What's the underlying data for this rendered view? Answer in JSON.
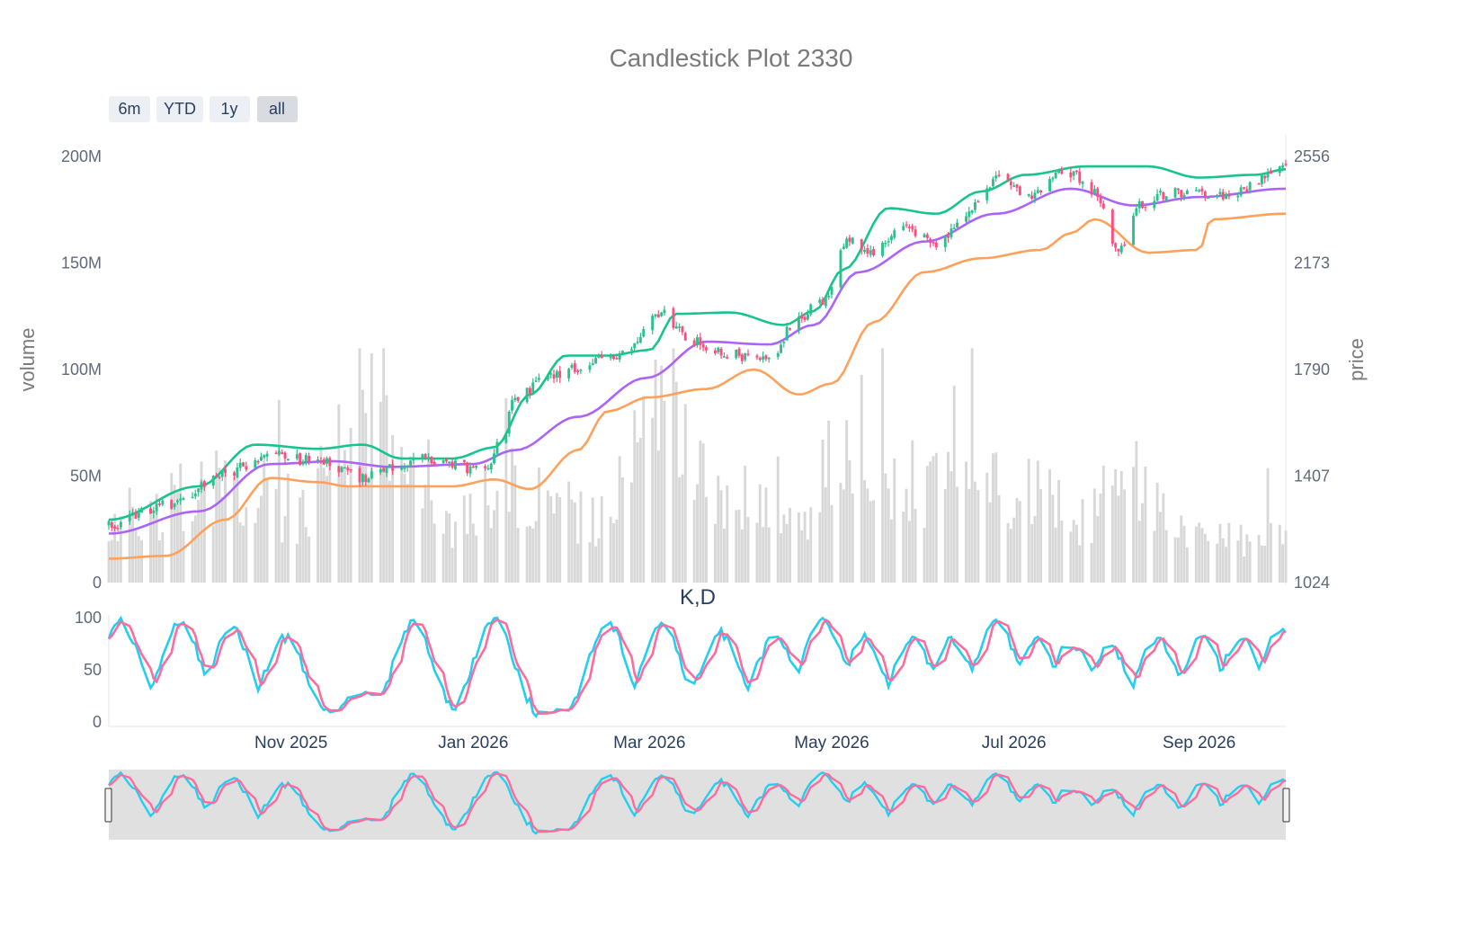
{
  "chart_data": {
    "type": "candlestick",
    "title": "Candlestick Plot 2330",
    "subplot_title": "K,D",
    "range_buttons": [
      "6m",
      "YTD",
      "1y",
      "all"
    ],
    "active_range_button": "all",
    "y_left_label": "volume",
    "y_right_label": "price",
    "volume_ticks": [
      "0",
      "50M",
      "100M",
      "150M",
      "200M"
    ],
    "volume_tick_values": [
      0,
      50000000,
      100000000,
      150000000,
      200000000
    ],
    "price_ticks": [
      "1024",
      "1407",
      "1790",
      "2173",
      "2556"
    ],
    "price_tick_values": [
      1024,
      1407,
      1790,
      2173,
      2556
    ],
    "kd_ticks": [
      "0",
      "50",
      "100"
    ],
    "kd_tick_values": [
      0,
      50,
      100
    ],
    "x_start": "2025-09-01",
    "x_end": "2026-09-30",
    "x_ticks": [
      {
        "label": "Nov 2025",
        "date": "2025-11-01"
      },
      {
        "label": "Jan 2026",
        "date": "2026-01-01"
      },
      {
        "label": "Mar 2026",
        "date": "2026-03-01"
      },
      {
        "label": "May 2026",
        "date": "2026-05-01"
      },
      {
        "label": "Jul 2026",
        "date": "2026-07-01"
      },
      {
        "label": "Sep 2026",
        "date": "2026-09-01"
      }
    ],
    "price_anchors": [
      {
        "date": "2025-09-01",
        "price": 1230
      },
      {
        "date": "2025-09-20",
        "price": 1300
      },
      {
        "date": "2025-10-10",
        "price": 1420
      },
      {
        "date": "2025-10-25",
        "price": 1480
      },
      {
        "date": "2025-11-10",
        "price": 1460
      },
      {
        "date": "2025-11-25",
        "price": 1400
      },
      {
        "date": "2025-12-15",
        "price": 1470
      },
      {
        "date": "2026-01-05",
        "price": 1430
      },
      {
        "date": "2026-01-10",
        "price": 1520
      },
      {
        "date": "2026-01-15",
        "price": 1680
      },
      {
        "date": "2026-01-25",
        "price": 1760
      },
      {
        "date": "2026-02-05",
        "price": 1800
      },
      {
        "date": "2026-02-20",
        "price": 1850
      },
      {
        "date": "2026-03-05",
        "price": 1990
      },
      {
        "date": "2026-03-15",
        "price": 1900
      },
      {
        "date": "2026-03-25",
        "price": 1850
      },
      {
        "date": "2026-04-10",
        "price": 1820
      },
      {
        "date": "2026-04-20",
        "price": 1980
      },
      {
        "date": "2026-04-28",
        "price": 2030
      },
      {
        "date": "2026-05-06",
        "price": 2260
      },
      {
        "date": "2026-05-15",
        "price": 2220
      },
      {
        "date": "2026-05-25",
        "price": 2310
      },
      {
        "date": "2026-06-05",
        "price": 2240
      },
      {
        "date": "2026-06-15",
        "price": 2360
      },
      {
        "date": "2026-06-25",
        "price": 2470
      },
      {
        "date": "2026-07-05",
        "price": 2420
      },
      {
        "date": "2026-07-20",
        "price": 2500
      },
      {
        "date": "2026-07-28",
        "price": 2430
      },
      {
        "date": "2026-08-05",
        "price": 2210
      },
      {
        "date": "2026-08-12",
        "price": 2390
      },
      {
        "date": "2026-08-25",
        "price": 2430
      },
      {
        "date": "2026-09-10",
        "price": 2420
      },
      {
        "date": "2026-09-30",
        "price": 2520
      }
    ],
    "upper_band": [
      {
        "date": "2025-09-01",
        "price": 1250
      },
      {
        "date": "2025-10-01",
        "price": 1370
      },
      {
        "date": "2025-10-20",
        "price": 1520
      },
      {
        "date": "2025-11-10",
        "price": 1505
      },
      {
        "date": "2025-11-25",
        "price": 1520
      },
      {
        "date": "2025-12-08",
        "price": 1470
      },
      {
        "date": "2025-12-25",
        "price": 1470
      },
      {
        "date": "2026-01-08",
        "price": 1510
      },
      {
        "date": "2026-01-20",
        "price": 1700
      },
      {
        "date": "2026-02-01",
        "price": 1840
      },
      {
        "date": "2026-02-15",
        "price": 1840
      },
      {
        "date": "2026-03-01",
        "price": 1860
      },
      {
        "date": "2026-03-10",
        "price": 1990
      },
      {
        "date": "2026-03-28",
        "price": 1995
      },
      {
        "date": "2026-04-15",
        "price": 1950
      },
      {
        "date": "2026-04-25",
        "price": 2000
      },
      {
        "date": "2026-05-05",
        "price": 2150
      },
      {
        "date": "2026-05-20",
        "price": 2370
      },
      {
        "date": "2026-06-05",
        "price": 2350
      },
      {
        "date": "2026-06-20",
        "price": 2430
      },
      {
        "date": "2026-07-05",
        "price": 2490
      },
      {
        "date": "2026-07-25",
        "price": 2520
      },
      {
        "date": "2026-08-15",
        "price": 2520
      },
      {
        "date": "2026-09-01",
        "price": 2480
      },
      {
        "date": "2026-09-20",
        "price": 2490
      },
      {
        "date": "2026-09-30",
        "price": 2510
      }
    ],
    "middle_band": [
      {
        "date": "2025-09-01",
        "price": 1200
      },
      {
        "date": "2025-10-01",
        "price": 1280
      },
      {
        "date": "2025-10-25",
        "price": 1450
      },
      {
        "date": "2025-11-15",
        "price": 1460
      },
      {
        "date": "2025-12-05",
        "price": 1440
      },
      {
        "date": "2026-01-01",
        "price": 1450
      },
      {
        "date": "2026-01-15",
        "price": 1500
      },
      {
        "date": "2026-02-05",
        "price": 1620
      },
      {
        "date": "2026-02-28",
        "price": 1760
      },
      {
        "date": "2026-03-20",
        "price": 1890
      },
      {
        "date": "2026-04-10",
        "price": 1880
      },
      {
        "date": "2026-04-25",
        "price": 1950
      },
      {
        "date": "2026-05-10",
        "price": 2140
      },
      {
        "date": "2026-06-01",
        "price": 2250
      },
      {
        "date": "2026-06-25",
        "price": 2350
      },
      {
        "date": "2026-07-20",
        "price": 2440
      },
      {
        "date": "2026-08-10",
        "price": 2380
      },
      {
        "date": "2026-09-01",
        "price": 2410
      },
      {
        "date": "2026-09-30",
        "price": 2440
      }
    ],
    "lower_band": [
      {
        "date": "2025-09-01",
        "price": 1110
      },
      {
        "date": "2025-09-20",
        "price": 1120
      },
      {
        "date": "2025-10-10",
        "price": 1250
      },
      {
        "date": "2025-10-25",
        "price": 1400
      },
      {
        "date": "2025-11-10",
        "price": 1385
      },
      {
        "date": "2025-11-20",
        "price": 1370
      },
      {
        "date": "2025-12-25",
        "price": 1370
      },
      {
        "date": "2026-01-08",
        "price": 1395
      },
      {
        "date": "2026-01-20",
        "price": 1360
      },
      {
        "date": "2026-02-05",
        "price": 1500
      },
      {
        "date": "2026-02-15",
        "price": 1640
      },
      {
        "date": "2026-03-01",
        "price": 1690
      },
      {
        "date": "2026-03-20",
        "price": 1720
      },
      {
        "date": "2026-04-05",
        "price": 1790
      },
      {
        "date": "2026-04-20",
        "price": 1700
      },
      {
        "date": "2026-05-01",
        "price": 1740
      },
      {
        "date": "2026-05-15",
        "price": 1960
      },
      {
        "date": "2026-06-01",
        "price": 2140
      },
      {
        "date": "2026-06-20",
        "price": 2190
      },
      {
        "date": "2026-07-10",
        "price": 2220
      },
      {
        "date": "2026-07-20",
        "price": 2280
      },
      {
        "date": "2026-07-28",
        "price": 2330
      },
      {
        "date": "2026-08-15",
        "price": 2210
      },
      {
        "date": "2026-09-01",
        "price": 2220
      },
      {
        "date": "2026-09-05",
        "price": 2330
      },
      {
        "date": "2026-09-30",
        "price": 2350
      }
    ],
    "volume_anchors": [
      {
        "date": "2025-09-01",
        "volume": 30000000
      },
      {
        "date": "2025-10-10",
        "volume": 45000000
      },
      {
        "date": "2025-11-01",
        "volume": 30000000
      },
      {
        "date": "2025-11-28",
        "volume": 80000000
      },
      {
        "date": "2025-12-20",
        "volume": 28000000
      },
      {
        "date": "2026-01-15",
        "volume": 45000000
      },
      {
        "date": "2026-02-10",
        "volume": 30000000
      },
      {
        "date": "2026-03-05",
        "volume": 75000000
      },
      {
        "date": "2026-03-25",
        "volume": 40000000
      },
      {
        "date": "2026-04-20",
        "volume": 30000000
      },
      {
        "date": "2026-05-05",
        "volume": 60000000
      },
      {
        "date": "2026-06-05",
        "volume": 45000000
      },
      {
        "date": "2026-07-01",
        "volume": 45000000
      },
      {
        "date": "2026-07-25",
        "volume": 30000000
      },
      {
        "date": "2026-08-10",
        "volume": 50000000
      },
      {
        "date": "2026-09-01",
        "volume": 20000000
      },
      {
        "date": "2026-09-30",
        "volume": 20000000
      }
    ],
    "kd_centers": [
      "2025-09-05",
      "2025-09-25",
      "2025-10-12",
      "2025-10-30",
      "2025-11-25",
      "2025-12-12",
      "2026-01-08",
      "2026-02-15",
      "2026-03-05",
      "2026-03-25",
      "2026-04-12",
      "2026-04-28",
      "2026-05-12",
      "2026-05-28",
      "2026-06-10",
      "2026-06-25",
      "2026-07-08",
      "2026-07-20",
      "2026-08-02",
      "2026-08-18",
      "2026-09-02",
      "2026-09-15",
      "2026-09-28"
    ],
    "kd_peaks": [
      95,
      95,
      90,
      80,
      30,
      95,
      100,
      95,
      95,
      85,
      80,
      100,
      80,
      80,
      80,
      98,
      80,
      75,
      70,
      80,
      80,
      80,
      90
    ]
  },
  "colors": {
    "increasing": "#2ac18c",
    "decreasing": "#ff4d7e",
    "upper_band": "#17c48d",
    "middle_band": "#ab63fa",
    "lower_band": "#ffa15a",
    "volume": "#d8d8d8",
    "k_line": "#22cff0",
    "d_line": "#ff6b9d",
    "title": "#7a7a7a",
    "tick": "#5f6a7a",
    "x_tick": "#2a3f5f",
    "button_bg": "#eceff3",
    "button_active_bg": "#d8dbe0",
    "rangeslider_bg": "#e5e5e5"
  }
}
